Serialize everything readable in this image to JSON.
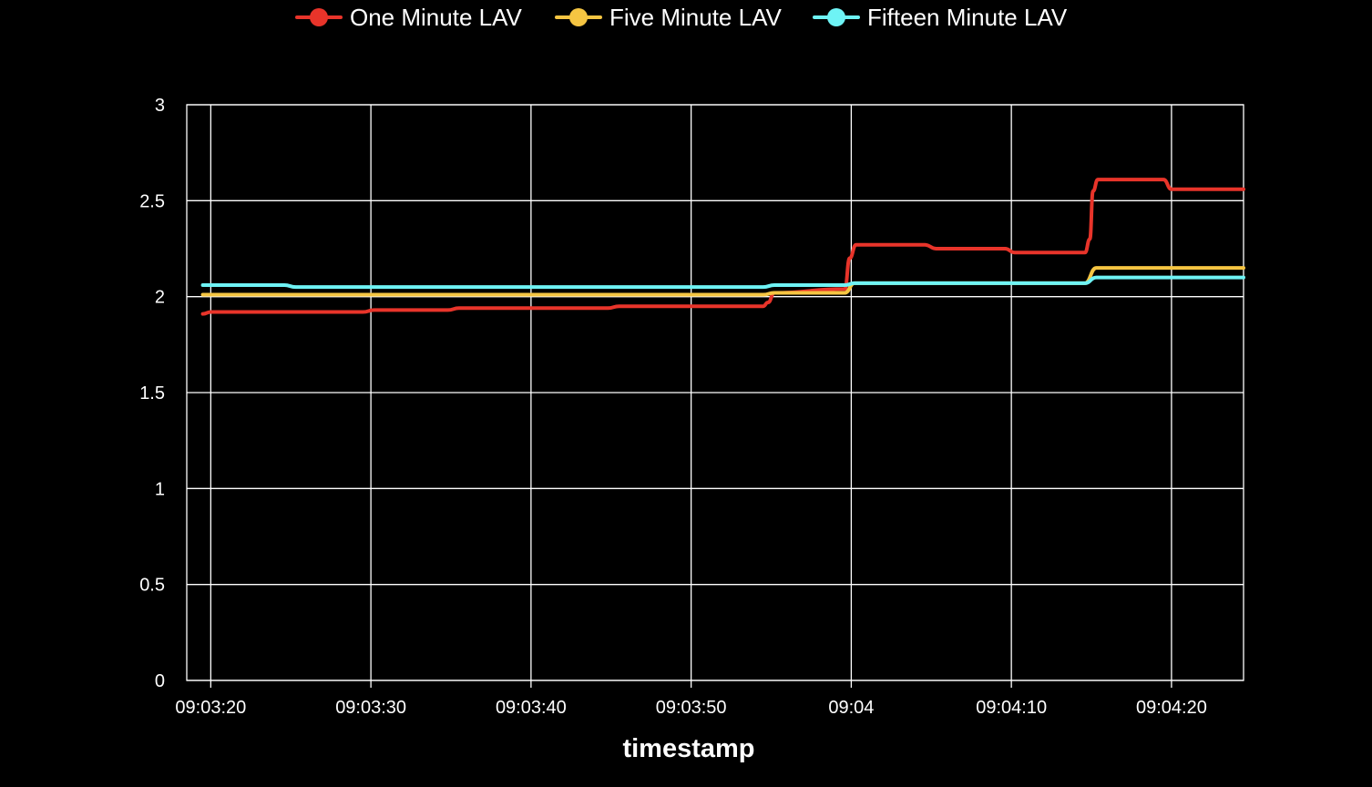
{
  "chart_data": {
    "type": "line",
    "title": "",
    "xlabel": "timestamp",
    "ylabel": "",
    "x_unit": "time",
    "xlim": [
      "09:03:18.5",
      "09:04:24.5"
    ],
    "ylim": [
      0,
      3
    ],
    "y_ticks": [
      {
        "value": 0,
        "label": "0"
      },
      {
        "value": 0.5,
        "label": "0.5"
      },
      {
        "value": 1,
        "label": "1"
      },
      {
        "value": 1.5,
        "label": "1.5"
      },
      {
        "value": 2,
        "label": "2"
      },
      {
        "value": 2.5,
        "label": "2.5"
      },
      {
        "value": 3,
        "label": "3"
      }
    ],
    "x_ticks": [
      {
        "value": "09:03:20",
        "label": "09:03:20"
      },
      {
        "value": "09:03:30",
        "label": "09:03:30"
      },
      {
        "value": "09:03:40",
        "label": "09:03:40"
      },
      {
        "value": "09:03:50",
        "label": "09:03:50"
      },
      {
        "value": "09:04:00",
        "label": "09:04"
      },
      {
        "value": "09:04:10",
        "label": "09:04:10"
      },
      {
        "value": "09:04:20",
        "label": "09:04:20"
      }
    ],
    "grid": true,
    "legend_position": "top-center",
    "series": [
      {
        "name": "One Minute LAV",
        "color": "#e8342a",
        "points": [
          [
            "09:03:19.5",
            1.91
          ],
          [
            "09:03:20",
            1.92
          ],
          [
            "09:03:29.5",
            1.92
          ],
          [
            "09:03:30.2",
            1.93
          ],
          [
            "09:03:34.8",
            1.93
          ],
          [
            "09:03:35.5",
            1.94
          ],
          [
            "09:03:44.8",
            1.94
          ],
          [
            "09:03:45.5",
            1.95
          ],
          [
            "09:03:54.5",
            1.95
          ],
          [
            "09:03:54.8",
            1.97
          ],
          [
            "09:03:55.2",
            2.02
          ],
          [
            "09:03:59.6",
            2.04
          ],
          [
            "09:03:59.9",
            2.2
          ],
          [
            "09:04:00.3",
            2.27
          ],
          [
            "09:04:04.6",
            2.27
          ],
          [
            "09:04:05.3",
            2.25
          ],
          [
            "09:04:09.6",
            2.25
          ],
          [
            "09:04:10.2",
            2.23
          ],
          [
            "09:04:14.6",
            2.23
          ],
          [
            "09:04:14.9",
            2.3
          ],
          [
            "09:04:15.1",
            2.55
          ],
          [
            "09:04:15.4",
            2.61
          ],
          [
            "09:04:19.5",
            2.61
          ],
          [
            "09:04:20",
            2.56
          ],
          [
            "09:04:24.5",
            2.56
          ]
        ]
      },
      {
        "name": "Five Minute LAV",
        "color": "#f5c542",
        "points": [
          [
            "09:03:19.5",
            2.01
          ],
          [
            "09:03:54.5",
            2.01
          ],
          [
            "09:03:55.2",
            2.02
          ],
          [
            "09:03:59.6",
            2.02
          ],
          [
            "09:04:00.2",
            2.07
          ],
          [
            "09:04:14.6",
            2.07
          ],
          [
            "09:04:15.3",
            2.15
          ],
          [
            "09:04:24.5",
            2.15
          ]
        ]
      },
      {
        "name": "Fifteen Minute LAV",
        "color": "#6ef3f5",
        "points": [
          [
            "09:03:19.5",
            2.06
          ],
          [
            "09:03:24.6",
            2.06
          ],
          [
            "09:03:25.3",
            2.05
          ],
          [
            "09:03:54.5",
            2.05
          ],
          [
            "09:03:55.2",
            2.06
          ],
          [
            "09:03:59.6",
            2.06
          ],
          [
            "09:04:00.2",
            2.07
          ],
          [
            "09:04:14.6",
            2.07
          ],
          [
            "09:04:15.3",
            2.1
          ],
          [
            "09:04:24.5",
            2.1
          ]
        ]
      }
    ]
  }
}
